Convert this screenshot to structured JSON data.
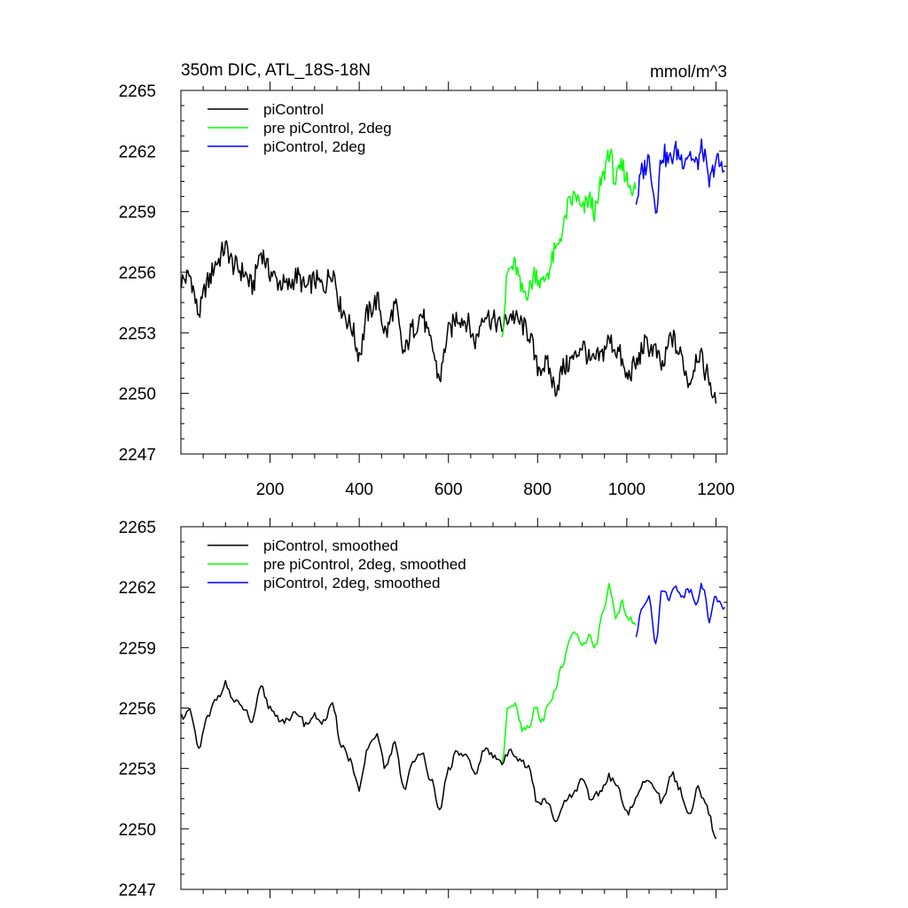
{
  "chart_data": [
    {
      "type": "line",
      "panel": "top",
      "title": "350m DIC, ATL_18S-18N",
      "units": "mmol/m^3",
      "xlabel": "",
      "ylabel": "",
      "xlim": [
        0,
        1225
      ],
      "ylim": [
        2247,
        2265
      ],
      "yticks": [
        2247,
        2250,
        2253,
        2256,
        2259,
        2262,
        2265
      ],
      "ytick_labels": [
        "2247",
        "2250",
        "2253",
        "2256",
        "2259",
        "2262",
        "2265"
      ],
      "xticks": [
        200,
        400,
        600,
        800,
        1000,
        1200
      ],
      "xtick_labels": [
        "200",
        "400",
        "600",
        "800",
        "1000",
        "1200"
      ],
      "legend_position": "top-left",
      "series": [
        {
          "name": "piControl",
          "color": "#000000",
          "x": [
            1,
            20,
            40,
            60,
            80,
            100,
            120,
            140,
            160,
            180,
            200,
            220,
            240,
            260,
            280,
            300,
            320,
            340,
            360,
            380,
            400,
            420,
            440,
            460,
            480,
            500,
            520,
            540,
            560,
            580,
            600,
            620,
            640,
            660,
            680,
            700,
            720,
            740,
            760,
            780,
            800,
            820,
            840,
            860,
            880,
            900,
            920,
            940,
            960,
            980,
            1000,
            1020,
            1040,
            1060,
            1080,
            1100,
            1120,
            1140,
            1160,
            1180,
            1200
          ],
          "values": [
            2255.6,
            2255.8,
            2254.0,
            2255.5,
            2256.5,
            2257.2,
            2256.3,
            2256.0,
            2255.3,
            2257.0,
            2256.0,
            2255.5,
            2255.3,
            2255.8,
            2255.2,
            2255.6,
            2255.3,
            2256.1,
            2254.2,
            2253.4,
            2252.0,
            2254.0,
            2254.6,
            2253.0,
            2254.3,
            2252.0,
            2253.2,
            2253.9,
            2252.5,
            2250.8,
            2253.0,
            2253.8,
            2253.6,
            2252.6,
            2254.0,
            2253.6,
            2253.3,
            2253.9,
            2253.5,
            2253.0,
            2251.3,
            2251.4,
            2250.3,
            2251.3,
            2251.7,
            2252.4,
            2251.5,
            2251.8,
            2252.6,
            2252.1,
            2250.8,
            2251.4,
            2252.4,
            2252.2,
            2251.3,
            2252.8,
            2251.9,
            2250.6,
            2252.0,
            2251.0,
            2249.5
          ]
        },
        {
          "name": "pre piControl, 2deg",
          "color": "#00ff00",
          "x": [
            720,
            735,
            750,
            765,
            780,
            795,
            810,
            825,
            840,
            855,
            870,
            885,
            900,
            915,
            930,
            945,
            960,
            975,
            990,
            1005,
            1020
          ],
          "values": [
            2253.3,
            2256.1,
            2256.3,
            2255.0,
            2255.1,
            2256.0,
            2255.4,
            2256.1,
            2257.0,
            2258.0,
            2259.3,
            2259.8,
            2259.0,
            2259.6,
            2259.0,
            2260.6,
            2262.0,
            2260.5,
            2261.2,
            2260.4,
            2260.1
          ]
        },
        {
          "name": "piControl, 2deg",
          "color": "#0000ff",
          "x": [
            1021,
            1035,
            1050,
            1065,
            1080,
            1095,
            1110,
            1125,
            1140,
            1155,
            1170,
            1185,
            1200,
            1220
          ],
          "values": [
            2259.6,
            2261.0,
            2261.6,
            2259.3,
            2261.9,
            2261.5,
            2262.0,
            2261.6,
            2261.9,
            2261.3,
            2262.1,
            2260.4,
            2261.5,
            2261.0
          ]
        }
      ]
    },
    {
      "type": "line",
      "panel": "bottom",
      "title": "",
      "xlabel": "",
      "ylabel": "",
      "xlim": [
        0,
        1225
      ],
      "ylim": [
        2247,
        2265
      ],
      "yticks": [
        2247,
        2250,
        2253,
        2256,
        2259,
        2262,
        2265
      ],
      "ytick_labels": [
        "2247",
        "2250",
        "2253",
        "2256",
        "2259",
        "2262",
        "2265"
      ],
      "xticks": [
        200,
        400,
        600,
        800,
        1000,
        1200
      ],
      "legend_position": "top-left",
      "series": [
        {
          "name": "piControl, smoothed",
          "color": "#000000",
          "x": [
            1,
            20,
            40,
            60,
            80,
            100,
            120,
            140,
            160,
            180,
            200,
            220,
            240,
            260,
            280,
            300,
            320,
            340,
            360,
            380,
            400,
            420,
            440,
            460,
            480,
            500,
            520,
            540,
            560,
            580,
            600,
            620,
            640,
            660,
            680,
            700,
            720,
            740,
            760,
            780,
            800,
            820,
            840,
            860,
            880,
            900,
            920,
            940,
            960,
            980,
            1000,
            1020,
            1040,
            1060,
            1080,
            1100,
            1120,
            1140,
            1160,
            1180,
            1200
          ],
          "values": [
            2255.6,
            2255.8,
            2254.0,
            2255.5,
            2256.5,
            2257.2,
            2256.3,
            2256.0,
            2255.3,
            2257.0,
            2256.0,
            2255.5,
            2255.3,
            2255.8,
            2255.2,
            2255.6,
            2255.3,
            2256.1,
            2254.2,
            2253.4,
            2252.0,
            2254.0,
            2254.6,
            2253.0,
            2254.3,
            2252.0,
            2253.2,
            2253.9,
            2252.5,
            2250.8,
            2253.0,
            2253.8,
            2253.6,
            2252.6,
            2254.0,
            2253.6,
            2253.3,
            2253.9,
            2253.5,
            2253.0,
            2251.3,
            2251.4,
            2250.3,
            2251.3,
            2251.7,
            2252.4,
            2251.5,
            2251.8,
            2252.6,
            2252.1,
            2250.8,
            2251.4,
            2252.4,
            2252.2,
            2251.3,
            2252.8,
            2251.9,
            2250.6,
            2252.0,
            2251.0,
            2249.5
          ]
        },
        {
          "name": "pre piControl, 2deg, smoothed",
          "color": "#00ff00",
          "x": [
            720,
            735,
            750,
            765,
            780,
            795,
            810,
            825,
            840,
            855,
            870,
            885,
            900,
            915,
            930,
            945,
            960,
            975,
            990,
            1005,
            1020
          ],
          "values": [
            2253.3,
            2256.1,
            2256.3,
            2255.0,
            2255.1,
            2256.0,
            2255.4,
            2256.1,
            2257.0,
            2258.0,
            2259.3,
            2259.8,
            2259.0,
            2259.6,
            2259.0,
            2260.6,
            2262.0,
            2260.5,
            2261.2,
            2260.4,
            2260.1
          ]
        },
        {
          "name": "piControl, 2deg, smoothed",
          "color": "#0000ff",
          "x": [
            1021,
            1035,
            1050,
            1065,
            1080,
            1095,
            1110,
            1125,
            1140,
            1155,
            1170,
            1185,
            1200,
            1220
          ],
          "values": [
            2259.6,
            2261.0,
            2261.6,
            2259.3,
            2261.9,
            2261.5,
            2262.0,
            2261.6,
            2261.9,
            2261.3,
            2262.1,
            2260.4,
            2261.5,
            2261.0
          ]
        }
      ]
    }
  ]
}
